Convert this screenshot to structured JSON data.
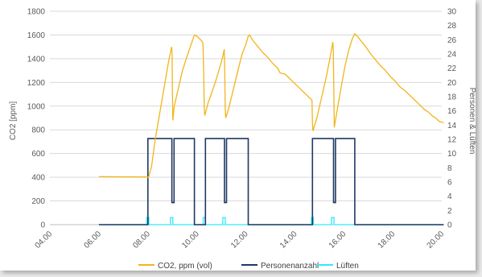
{
  "chart_data": {
    "type": "line",
    "title": "",
    "xlabel": "",
    "ylabel": "CO2 [ppm]",
    "y2label": "Personen & Lüften",
    "xlim": [
      4,
      20
    ],
    "ylim": [
      0,
      1800
    ],
    "y2lim": [
      0,
      30
    ],
    "x_ticks": [
      "04.00",
      "06.00",
      "08.00",
      "10.00",
      "12.00",
      "14.00",
      "16.00",
      "18.00",
      "20.00"
    ],
    "y_ticks": [
      "0",
      "200",
      "400",
      "600",
      "800",
      "1000",
      "1200",
      "1400",
      "1600",
      "1800"
    ],
    "y2_ticks": [
      "0",
      "2",
      "4",
      "6",
      "8",
      "10",
      "12",
      "14",
      "16",
      "18",
      "20",
      "22",
      "24",
      "26",
      "28",
      "30"
    ],
    "grid": "horizontal",
    "legend_position": "bottom",
    "colors": {
      "co2": "#f2b51a",
      "persons": "#1f3864",
      "ventilation": "#33e6ff",
      "grid": "#d9d9d9",
      "axis": "#bfbfbf"
    },
    "series": [
      {
        "name": "CO2, ppm (vol)",
        "axis": "left",
        "color": "#f2b51a",
        "points": [
          [
            6.0,
            405
          ],
          [
            8.0,
            402
          ],
          [
            8.02,
            395
          ],
          [
            8.15,
            490
          ],
          [
            8.3,
            720
          ],
          [
            8.5,
            960
          ],
          [
            8.7,
            1200
          ],
          [
            8.85,
            1380
          ],
          [
            8.97,
            1500
          ],
          [
            8.99,
            1440
          ],
          [
            9.0,
            1160
          ],
          [
            9.02,
            880
          ],
          [
            9.08,
            1000
          ],
          [
            9.2,
            1110
          ],
          [
            9.4,
            1290
          ],
          [
            9.6,
            1420
          ],
          [
            9.8,
            1540
          ],
          [
            9.9,
            1600
          ],
          [
            10.0,
            1590
          ],
          [
            10.1,
            1570
          ],
          [
            10.2,
            1550
          ],
          [
            10.25,
            1530
          ],
          [
            10.28,
            1300
          ],
          [
            10.3,
            1000
          ],
          [
            10.32,
            920
          ],
          [
            10.45,
            1020
          ],
          [
            10.6,
            1110
          ],
          [
            10.75,
            1200
          ],
          [
            10.9,
            1300
          ],
          [
            11.05,
            1410
          ],
          [
            11.12,
            1480
          ],
          [
            11.14,
            1300
          ],
          [
            11.16,
            980
          ],
          [
            11.18,
            900
          ],
          [
            11.3,
            980
          ],
          [
            11.5,
            1150
          ],
          [
            11.7,
            1320
          ],
          [
            11.85,
            1440
          ],
          [
            12.0,
            1520
          ],
          [
            12.1,
            1590
          ],
          [
            12.15,
            1600
          ],
          [
            12.3,
            1550
          ],
          [
            12.5,
            1500
          ],
          [
            12.7,
            1450
          ],
          [
            12.9,
            1410
          ],
          [
            13.1,
            1360
          ],
          [
            13.3,
            1320
          ],
          [
            13.4,
            1280
          ],
          [
            13.6,
            1270
          ],
          [
            13.8,
            1230
          ],
          [
            14.0,
            1190
          ],
          [
            14.2,
            1150
          ],
          [
            14.4,
            1110
          ],
          [
            14.6,
            1070
          ],
          [
            14.7,
            1050
          ],
          [
            14.72,
            860
          ],
          [
            14.74,
            790
          ],
          [
            14.9,
            900
          ],
          [
            15.1,
            1080
          ],
          [
            15.3,
            1260
          ],
          [
            15.45,
            1420
          ],
          [
            15.55,
            1540
          ],
          [
            15.57,
            1480
          ],
          [
            15.59,
            1160
          ],
          [
            15.61,
            820
          ],
          [
            15.75,
            990
          ],
          [
            15.9,
            1170
          ],
          [
            16.05,
            1340
          ],
          [
            16.2,
            1470
          ],
          [
            16.35,
            1570
          ],
          [
            16.45,
            1610
          ],
          [
            16.55,
            1590
          ],
          [
            16.7,
            1550
          ],
          [
            16.9,
            1500
          ],
          [
            17.1,
            1440
          ],
          [
            17.3,
            1390
          ],
          [
            17.5,
            1340
          ],
          [
            17.7,
            1300
          ],
          [
            17.9,
            1250
          ],
          [
            18.1,
            1210
          ],
          [
            18.3,
            1160
          ],
          [
            18.5,
            1130
          ],
          [
            18.7,
            1090
          ],
          [
            18.9,
            1050
          ],
          [
            19.1,
            1010
          ],
          [
            19.3,
            970
          ],
          [
            19.45,
            950
          ],
          [
            19.6,
            920
          ],
          [
            19.75,
            900
          ],
          [
            19.9,
            870
          ],
          [
            20.0,
            865
          ],
          [
            20.08,
            860
          ]
        ]
      },
      {
        "name": "Personenanzahl",
        "axis": "right",
        "color": "#1f3864",
        "points": [
          [
            6.0,
            0
          ],
          [
            8.0,
            0
          ],
          [
            8.0,
            12.1
          ],
          [
            8.98,
            12.1
          ],
          [
            8.98,
            3.1
          ],
          [
            9.07,
            3.1
          ],
          [
            9.07,
            12.1
          ],
          [
            9.9,
            12.1
          ],
          [
            9.9,
            0
          ],
          [
            10.35,
            0
          ],
          [
            10.35,
            12.1
          ],
          [
            11.13,
            12.1
          ],
          [
            11.13,
            3.1
          ],
          [
            11.21,
            3.1
          ],
          [
            11.21,
            12.1
          ],
          [
            12.1,
            12.1
          ],
          [
            12.1,
            0
          ],
          [
            14.72,
            0
          ],
          [
            14.72,
            12.1
          ],
          [
            15.58,
            12.1
          ],
          [
            15.58,
            3.1
          ],
          [
            15.66,
            3.1
          ],
          [
            15.66,
            12.1
          ],
          [
            16.45,
            12.1
          ],
          [
            16.45,
            0
          ],
          [
            20.08,
            0
          ]
        ]
      },
      {
        "name": "Lüften",
        "axis": "right",
        "color": "#33e6ff",
        "points": [
          [
            6.0,
            0
          ],
          [
            7.95,
            0
          ],
          [
            7.95,
            1
          ],
          [
            8.04,
            1
          ],
          [
            8.04,
            0
          ],
          [
            8.92,
            0
          ],
          [
            8.92,
            1
          ],
          [
            9.02,
            1
          ],
          [
            9.02,
            0
          ],
          [
            10.26,
            0
          ],
          [
            10.26,
            1
          ],
          [
            10.34,
            1
          ],
          [
            10.34,
            0
          ],
          [
            11.06,
            0
          ],
          [
            11.06,
            1
          ],
          [
            11.16,
            1
          ],
          [
            11.16,
            0
          ],
          [
            14.68,
            0
          ],
          [
            14.68,
            1
          ],
          [
            14.76,
            1
          ],
          [
            14.76,
            0
          ],
          [
            15.5,
            0
          ],
          [
            15.5,
            1
          ],
          [
            15.6,
            1
          ],
          [
            15.6,
            0
          ],
          [
            20.08,
            0
          ]
        ]
      }
    ]
  }
}
